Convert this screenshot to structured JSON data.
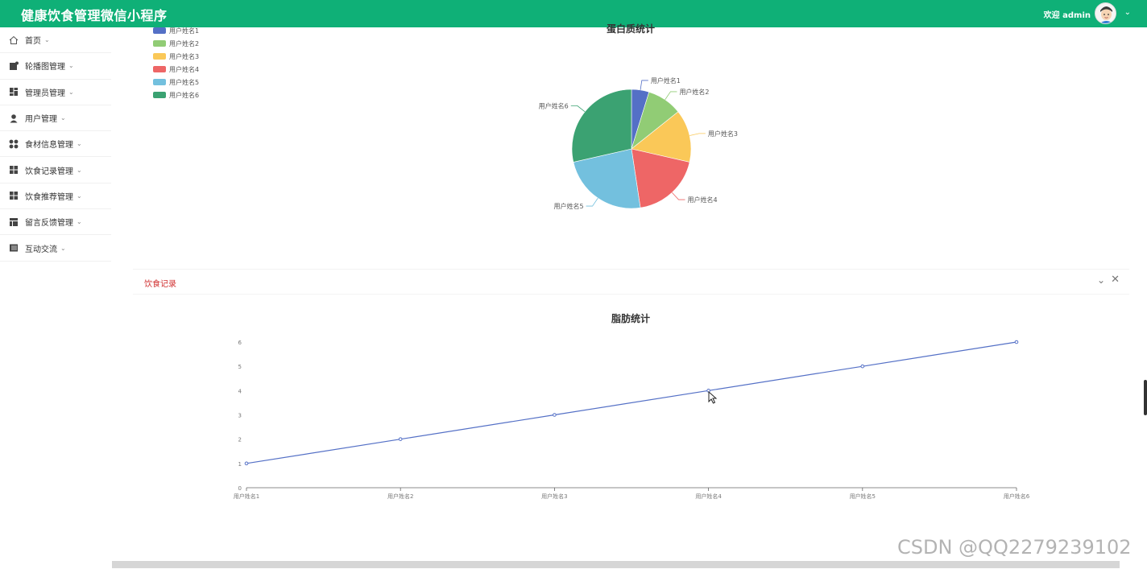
{
  "header": {
    "app_title": "健康饮食管理微信小程序",
    "welcome_text": "欢迎 admin"
  },
  "sidebar": {
    "items": [
      {
        "label": "首页",
        "icon": "home-icon"
      },
      {
        "label": "轮播图管理",
        "icon": "image-icon"
      },
      {
        "label": "管理员管理",
        "icon": "dashboard-icon"
      },
      {
        "label": "用户管理",
        "icon": "user-icon"
      },
      {
        "label": "食材信息管理",
        "icon": "grid-dots-icon"
      },
      {
        "label": "饮食记录管理",
        "icon": "grid-icon"
      },
      {
        "label": "饮食推荐管理",
        "icon": "grid-icon"
      },
      {
        "label": "留言反馈管理",
        "icon": "layout-icon"
      },
      {
        "label": "互动交流",
        "icon": "book-icon"
      }
    ]
  },
  "protein_chart": {
    "chart_data": {
      "type": "pie",
      "title": "蛋白质统计",
      "categories": [
        "用户姓名1",
        "用户姓名2",
        "用户姓名3",
        "用户姓名4",
        "用户姓名5",
        "用户姓名6"
      ],
      "values": [
        1,
        2,
        3,
        4,
        5,
        6
      ],
      "colors": [
        "#5470c6",
        "#91cc75",
        "#fac858",
        "#ee6666",
        "#73c0de",
        "#3ba272"
      ],
      "legend_placement": "top-left"
    }
  },
  "diet_panel": {
    "title": "饮食记录"
  },
  "fat_chart": {
    "chart_data": {
      "type": "line",
      "title": "脂肪统计",
      "categories": [
        "用户姓名1",
        "用户姓名2",
        "用户姓名3",
        "用户姓名4",
        "用户姓名5",
        "用户姓名6"
      ],
      "values": [
        1,
        2,
        3,
        4,
        5,
        6
      ],
      "ylim": [
        0,
        6
      ],
      "yticks": [
        "0",
        "1",
        "2",
        "3",
        "4",
        "5",
        "6"
      ],
      "color": "#5470c6"
    }
  },
  "watermark": "CSDN @QQ2279239102"
}
